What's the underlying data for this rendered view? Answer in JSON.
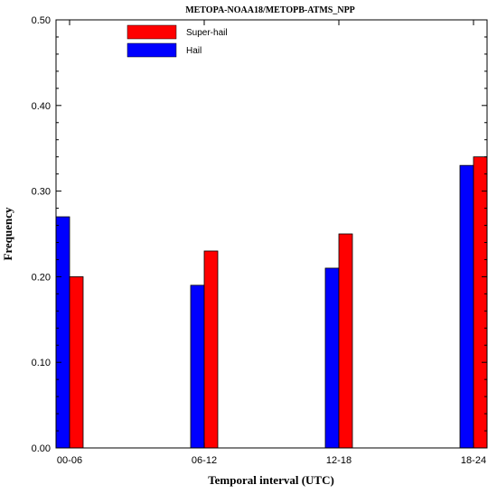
{
  "chart_data": {
    "type": "bar",
    "title": "METOPA-NOAA18/METOPB-ATMS_NPP",
    "xlabel": "Temporal interval (UTC)",
    "ylabel": "Frequency",
    "ylim": [
      0,
      0.5
    ],
    "yticks": [
      "0.00",
      "0.10",
      "0.20",
      "0.30",
      "0.40",
      "0.50"
    ],
    "categories": [
      "00-06",
      "06-12",
      "12-18",
      "18-24"
    ],
    "series": [
      {
        "name": "Hail",
        "color": "#0000ff",
        "values": [
          0.27,
          0.19,
          0.21,
          0.33
        ]
      },
      {
        "name": "Super-hail",
        "color": "#ff0000",
        "values": [
          0.2,
          0.23,
          0.25,
          0.34
        ]
      }
    ],
    "legend_order": [
      1,
      0
    ],
    "legend_position": "top-left",
    "grid": false
  }
}
